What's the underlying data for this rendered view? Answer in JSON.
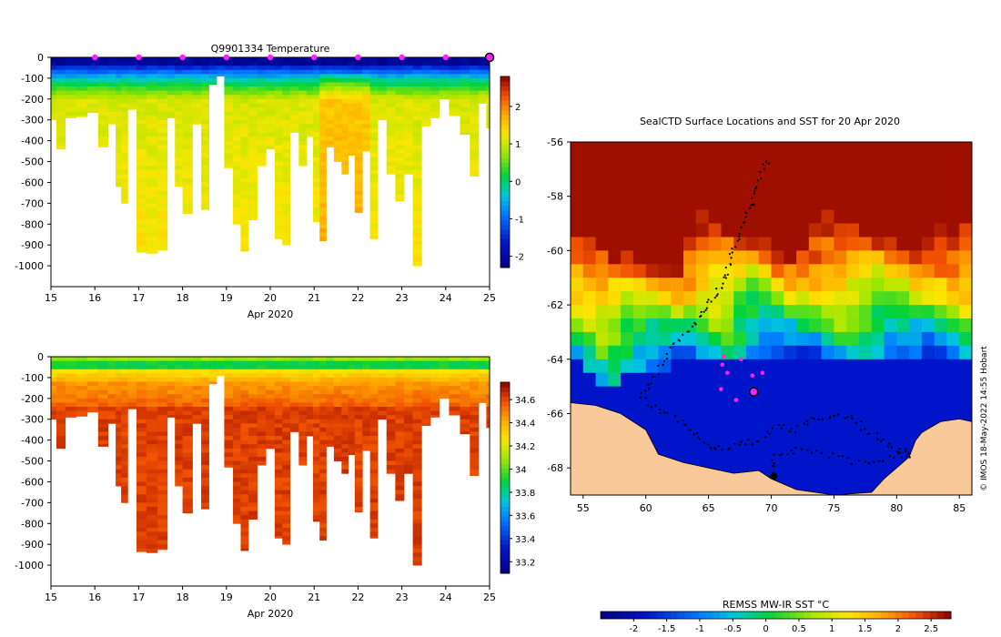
{
  "chart_data": [
    {
      "id": "temp",
      "type": "heatmap",
      "title": "Q9901334  Temperature",
      "xlabel": "Apr 2020",
      "ylabel": "",
      "xlim": [
        15,
        25
      ],
      "ylim": [
        -1100,
        0
      ],
      "x_ticks": [
        15,
        16,
        17,
        18,
        19,
        20,
        21,
        22,
        23,
        24,
        25
      ],
      "y_ticks": [
        0,
        -100,
        -200,
        -300,
        -400,
        -500,
        -600,
        -700,
        -800,
        -900,
        -1000
      ],
      "colorbar": {
        "min": -2.3,
        "max": 2.8,
        "ticks": [
          -2,
          -1,
          0,
          1,
          2
        ]
      },
      "surface_markers_days": [
        16,
        17,
        18,
        19,
        20,
        21,
        22,
        23,
        24
      ],
      "current_marker_day": 25,
      "profiles": [
        {
          "t": 15.05,
          "depth": 300
        },
        {
          "t": 15.2,
          "depth": 440
        },
        {
          "t": 15.45,
          "depth": 290
        },
        {
          "t": 15.7,
          "depth": 285
        },
        {
          "t": 15.95,
          "depth": 265
        },
        {
          "t": 16.2,
          "depth": 430
        },
        {
          "t": 16.4,
          "depth": 320
        },
        {
          "t": 16.55,
          "depth": 620
        },
        {
          "t": 16.65,
          "depth": 700
        },
        {
          "t": 16.85,
          "depth": 250
        },
        {
          "t": 17.05,
          "depth": 935
        },
        {
          "t": 17.3,
          "depth": 940
        },
        {
          "t": 17.55,
          "depth": 925
        },
        {
          "t": 17.75,
          "depth": 290
        },
        {
          "t": 17.9,
          "depth": 620
        },
        {
          "t": 18.1,
          "depth": 750
        },
        {
          "t": 18.35,
          "depth": 320
        },
        {
          "t": 18.5,
          "depth": 730
        },
        {
          "t": 18.7,
          "depth": 130
        },
        {
          "t": 18.85,
          "depth": 90
        },
        {
          "t": 19.05,
          "depth": 530
        },
        {
          "t": 19.25,
          "depth": 800
        },
        {
          "t": 19.4,
          "depth": 930
        },
        {
          "t": 19.6,
          "depth": 780
        },
        {
          "t": 19.8,
          "depth": 520
        },
        {
          "t": 20.0,
          "depth": 440
        },
        {
          "t": 20.2,
          "depth": 870
        },
        {
          "t": 20.35,
          "depth": 900
        },
        {
          "t": 20.55,
          "depth": 360
        },
        {
          "t": 20.75,
          "depth": 520
        },
        {
          "t": 20.9,
          "depth": 380
        },
        {
          "t": 21.05,
          "depth": 790
        },
        {
          "t": 21.2,
          "depth": 880
        },
        {
          "t": 21.35,
          "depth": 430
        },
        {
          "t": 21.55,
          "depth": 500
        },
        {
          "t": 21.7,
          "depth": 560
        },
        {
          "t": 21.85,
          "depth": 470
        },
        {
          "t": 22.0,
          "depth": 745
        },
        {
          "t": 22.2,
          "depth": 450
        },
        {
          "t": 22.35,
          "depth": 870
        },
        {
          "t": 22.55,
          "depth": 300
        },
        {
          "t": 22.75,
          "depth": 560
        },
        {
          "t": 22.95,
          "depth": 690
        },
        {
          "t": 23.15,
          "depth": 560
        },
        {
          "t": 23.35,
          "depth": 1000
        },
        {
          "t": 23.55,
          "depth": 330
        },
        {
          "t": 23.75,
          "depth": 290
        },
        {
          "t": 23.95,
          "depth": 200
        },
        {
          "t": 24.2,
          "depth": 280
        },
        {
          "t": 24.45,
          "depth": 370
        },
        {
          "t": 24.65,
          "depth": 570
        },
        {
          "t": 24.85,
          "depth": 220
        },
        {
          "t": 25.0,
          "depth": 340
        }
      ]
    },
    {
      "id": "sal",
      "type": "heatmap",
      "title": "",
      "xlabel": "Apr 2020",
      "ylabel": "",
      "xlim": [
        15,
        25
      ],
      "ylim": [
        -1100,
        0
      ],
      "x_ticks": [
        15,
        16,
        17,
        18,
        19,
        20,
        21,
        22,
        23,
        24,
        25
      ],
      "y_ticks": [
        0,
        -100,
        -200,
        -300,
        -400,
        -500,
        -600,
        -700,
        -800,
        -900,
        -1000
      ],
      "colorbar": {
        "min": 33.1,
        "max": 34.75,
        "ticks": [
          33.2,
          33.4,
          33.6,
          33.8,
          34,
          34.2,
          34.4,
          34.6
        ]
      },
      "profiles_ref": "same as temp"
    },
    {
      "id": "map",
      "type": "heatmap",
      "title": "SealCTD Surface Locations and SST for 20 Apr 2020",
      "xlabel": "",
      "ylabel": "",
      "xlim": [
        54,
        86
      ],
      "ylim": [
        -69,
        -56
      ],
      "x_ticks": [
        55,
        60,
        65,
        70,
        75,
        80,
        85
      ],
      "y_ticks": [
        -56,
        -58,
        -60,
        -62,
        -64,
        -66,
        -68
      ],
      "colorbar": {
        "label": "REMSS MW-IR SST °C",
        "min": -2.5,
        "max": 2.8,
        "ticks": [
          -2,
          -1.5,
          -1,
          -0.5,
          0,
          0.5,
          1,
          1.5,
          2,
          2.5
        ]
      },
      "track": [
        [
          69.8,
          -56.6
        ],
        [
          69.0,
          -57.5
        ],
        [
          68.5,
          -58.2
        ],
        [
          67.9,
          -58.8
        ],
        [
          67.3,
          -59.5
        ],
        [
          66.8,
          -60.3
        ],
        [
          66.3,
          -61.0
        ],
        [
          65.7,
          -61.6
        ],
        [
          64.9,
          -62.1
        ],
        [
          64.0,
          -62.6
        ],
        [
          62.8,
          -63.2
        ],
        [
          61.6,
          -63.9
        ],
        [
          60.5,
          -64.8
        ],
        [
          59.6,
          -65.4
        ],
        [
          61.0,
          -65.9
        ],
        [
          62.8,
          -66.3
        ],
        [
          64.2,
          -66.9
        ],
        [
          65.5,
          -67.3
        ],
        [
          67.0,
          -67.2
        ],
        [
          68.8,
          -67.0
        ],
        [
          70.5,
          -66.5
        ],
        [
          72.0,
          -66.6
        ],
        [
          73.5,
          -66.2
        ],
        [
          75.5,
          -66.0
        ],
        [
          77.0,
          -66.4
        ],
        [
          78.5,
          -66.9
        ],
        [
          80.0,
          -67.3
        ],
        [
          81.2,
          -67.5
        ],
        [
          79.5,
          -67.6
        ],
        [
          77.0,
          -67.8
        ],
        [
          74.5,
          -67.5
        ],
        [
          72.0,
          -67.3
        ],
        [
          70.3,
          -67.6
        ],
        [
          70.0,
          -68.2
        ]
      ],
      "surface_locations": [
        [
          66.1,
          -64.2
        ],
        [
          66.5,
          -64.5
        ],
        [
          66.2,
          -63.9
        ],
        [
          67.6,
          -64.0
        ],
        [
          69.3,
          -64.5
        ],
        [
          66.0,
          -65.1
        ],
        [
          67.2,
          -65.5
        ],
        [
          68.5,
          -64.6
        ]
      ],
      "latest_location": [
        68.6,
        -65.2
      ],
      "end_point": [
        70.2,
        -68.3
      ]
    }
  ],
  "credit": "© IMOS 18-May-2022 14:55 Hobart"
}
